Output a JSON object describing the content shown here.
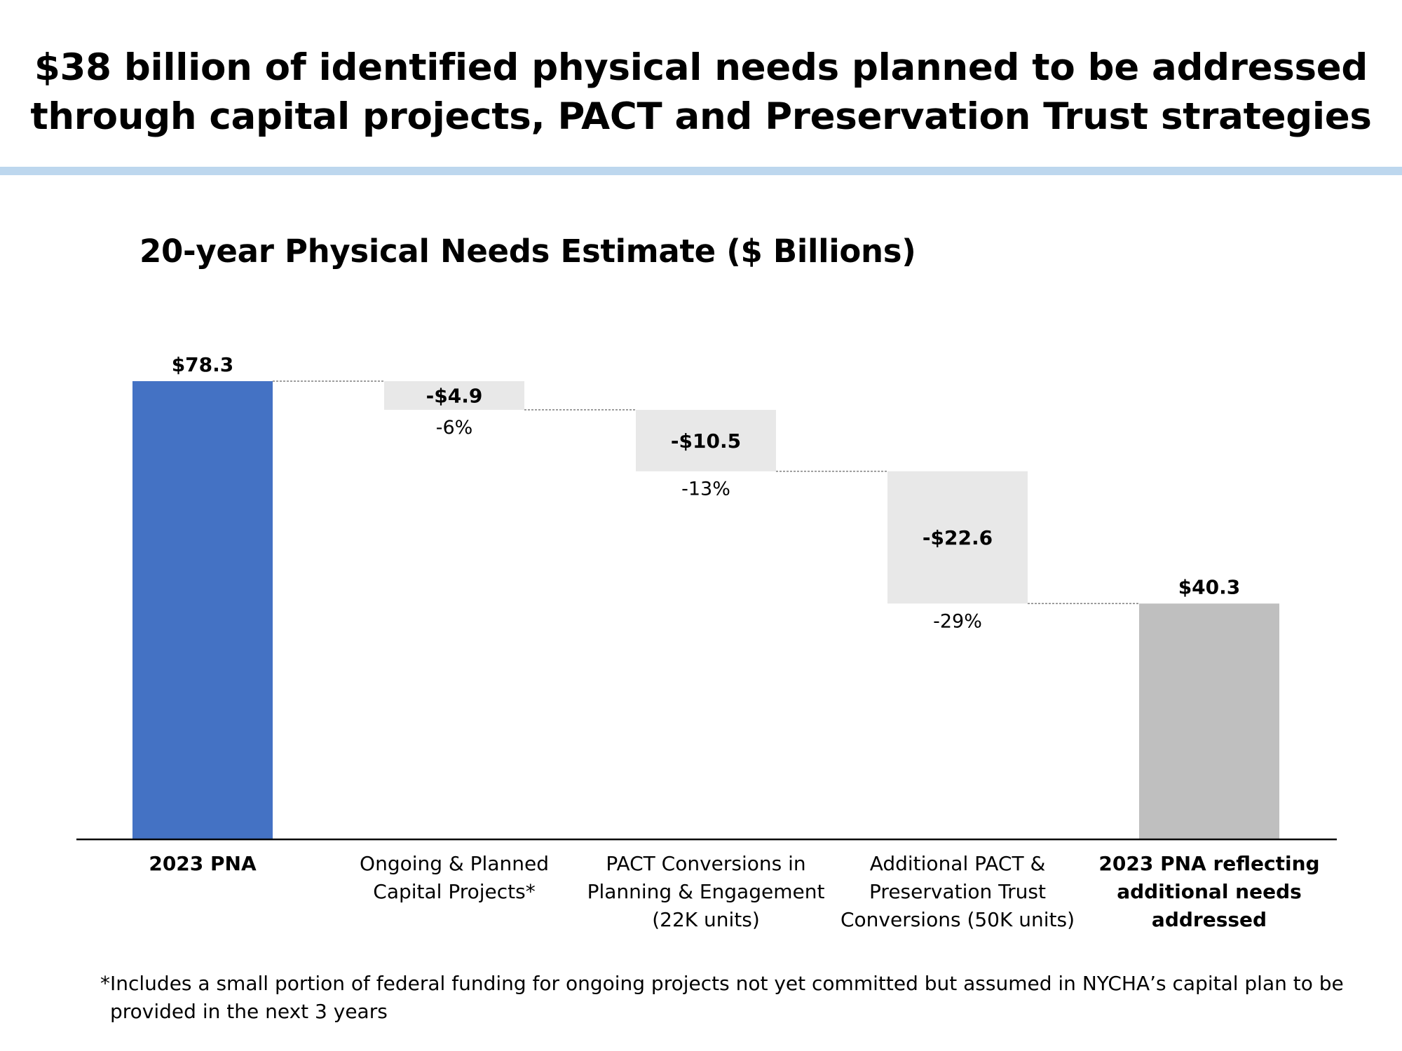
{
  "header": {
    "title_line1": "$38 billion of identified physical needs planned to be addressed",
    "title_line2": "through capital projects, PACT and Preservation Trust strategies"
  },
  "colors": {
    "divider": "#BDD7EE",
    "start_bar": "#4472C4",
    "decrease_bar": "#E8E8E8",
    "end_bar": "#BFBFBF",
    "axis": "#000000",
    "connector": "#7F7F7F"
  },
  "chart_data": {
    "type": "bar",
    "subtype": "waterfall",
    "title": "20-year Physical Needs Estimate ($ Billions)",
    "ylim": [
      0,
      80
    ],
    "grid": false,
    "categories": [
      {
        "lines": [
          "2023 PNA"
        ],
        "bold": true
      },
      {
        "lines": [
          "Ongoing & Planned",
          "Capital Projects*"
        ],
        "bold": false
      },
      {
        "lines": [
          "PACT Conversions in",
          "Planning & Engagement",
          "(22K units)"
        ],
        "bold": false
      },
      {
        "lines": [
          "Additional PACT &",
          "Preservation Trust",
          "Conversions (50K units)"
        ],
        "bold": false
      },
      {
        "lines": [
          "2023 PNA reflecting",
          "additional needs",
          "addressed"
        ],
        "bold": true
      }
    ],
    "values": [
      78.3,
      -4.9,
      -10.5,
      -22.6,
      40.3
    ],
    "kinds": [
      "total",
      "delta",
      "delta",
      "delta",
      "total"
    ],
    "value_labels": [
      "$78.3",
      "-$4.9",
      "-$10.5",
      "-$22.6",
      "$40.3"
    ],
    "percent_labels": [
      "",
      "-6%",
      "-13%",
      "-29%",
      ""
    ]
  },
  "footnote": {
    "line1": "*Includes a small portion of federal funding for ongoing projects not yet committed but assumed in NYCHA’s capital plan to be",
    "line2": "provided in the next 3 years"
  }
}
